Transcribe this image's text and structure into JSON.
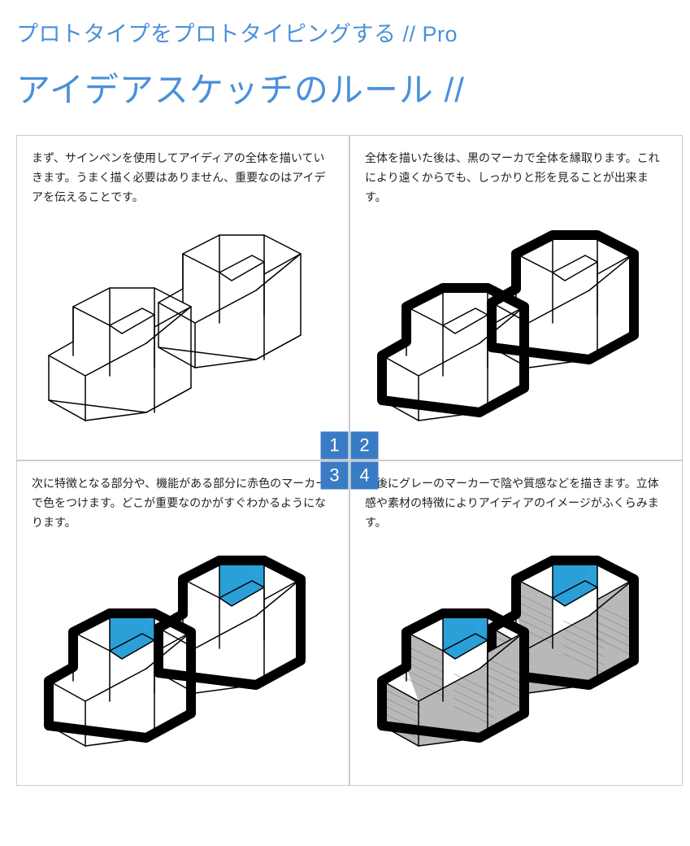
{
  "header": {
    "title1": "プロトタイプをプロトタイピングする // Pro",
    "title2": "アイデアスケッチのルール //"
  },
  "accent_color": "#4a90d9",
  "badge_color": "#3a7cc4",
  "panels": {
    "p1": {
      "text": "まず、サインペンを使用してアイディアの全体を描いていきます。うまく描く必要はありません、重要なのはアイデアを伝えることです。",
      "outline_thick": false,
      "highlight": false,
      "shade": false
    },
    "p2": {
      "text": "全体を描いた後は、黒のマーカで全体を縁取ります。これにより遠くからでも、しっかりと形を見ることが出来ます。",
      "outline_thick": true,
      "highlight": false,
      "shade": false
    },
    "p3": {
      "text": "次に特徴となる部分や、機能がある部分に赤色のマーカーで色をつけます。どこが重要なのかがすぐわかるようになります。",
      "outline_thick": true,
      "highlight": true,
      "shade": false
    },
    "p4": {
      "text": "最後にグレーのマーカーで陰や質感などを描きます。立体感や素材の特徴によりアイディアのイメージがふくらみます。",
      "outline_thick": true,
      "highlight": true,
      "shade": true
    }
  },
  "badges": {
    "b1": "1",
    "b2": "2",
    "b3": "3",
    "b4": "4"
  },
  "sketch": {
    "thin_stroke": "#000000",
    "thin_width": 1.5,
    "thick_stroke": "#000000",
    "thick_width": 12,
    "highlight_fill": "#2a9fd8",
    "shade_fill": "#b8b8b8",
    "shade_hatch": "#7a7a7a"
  }
}
